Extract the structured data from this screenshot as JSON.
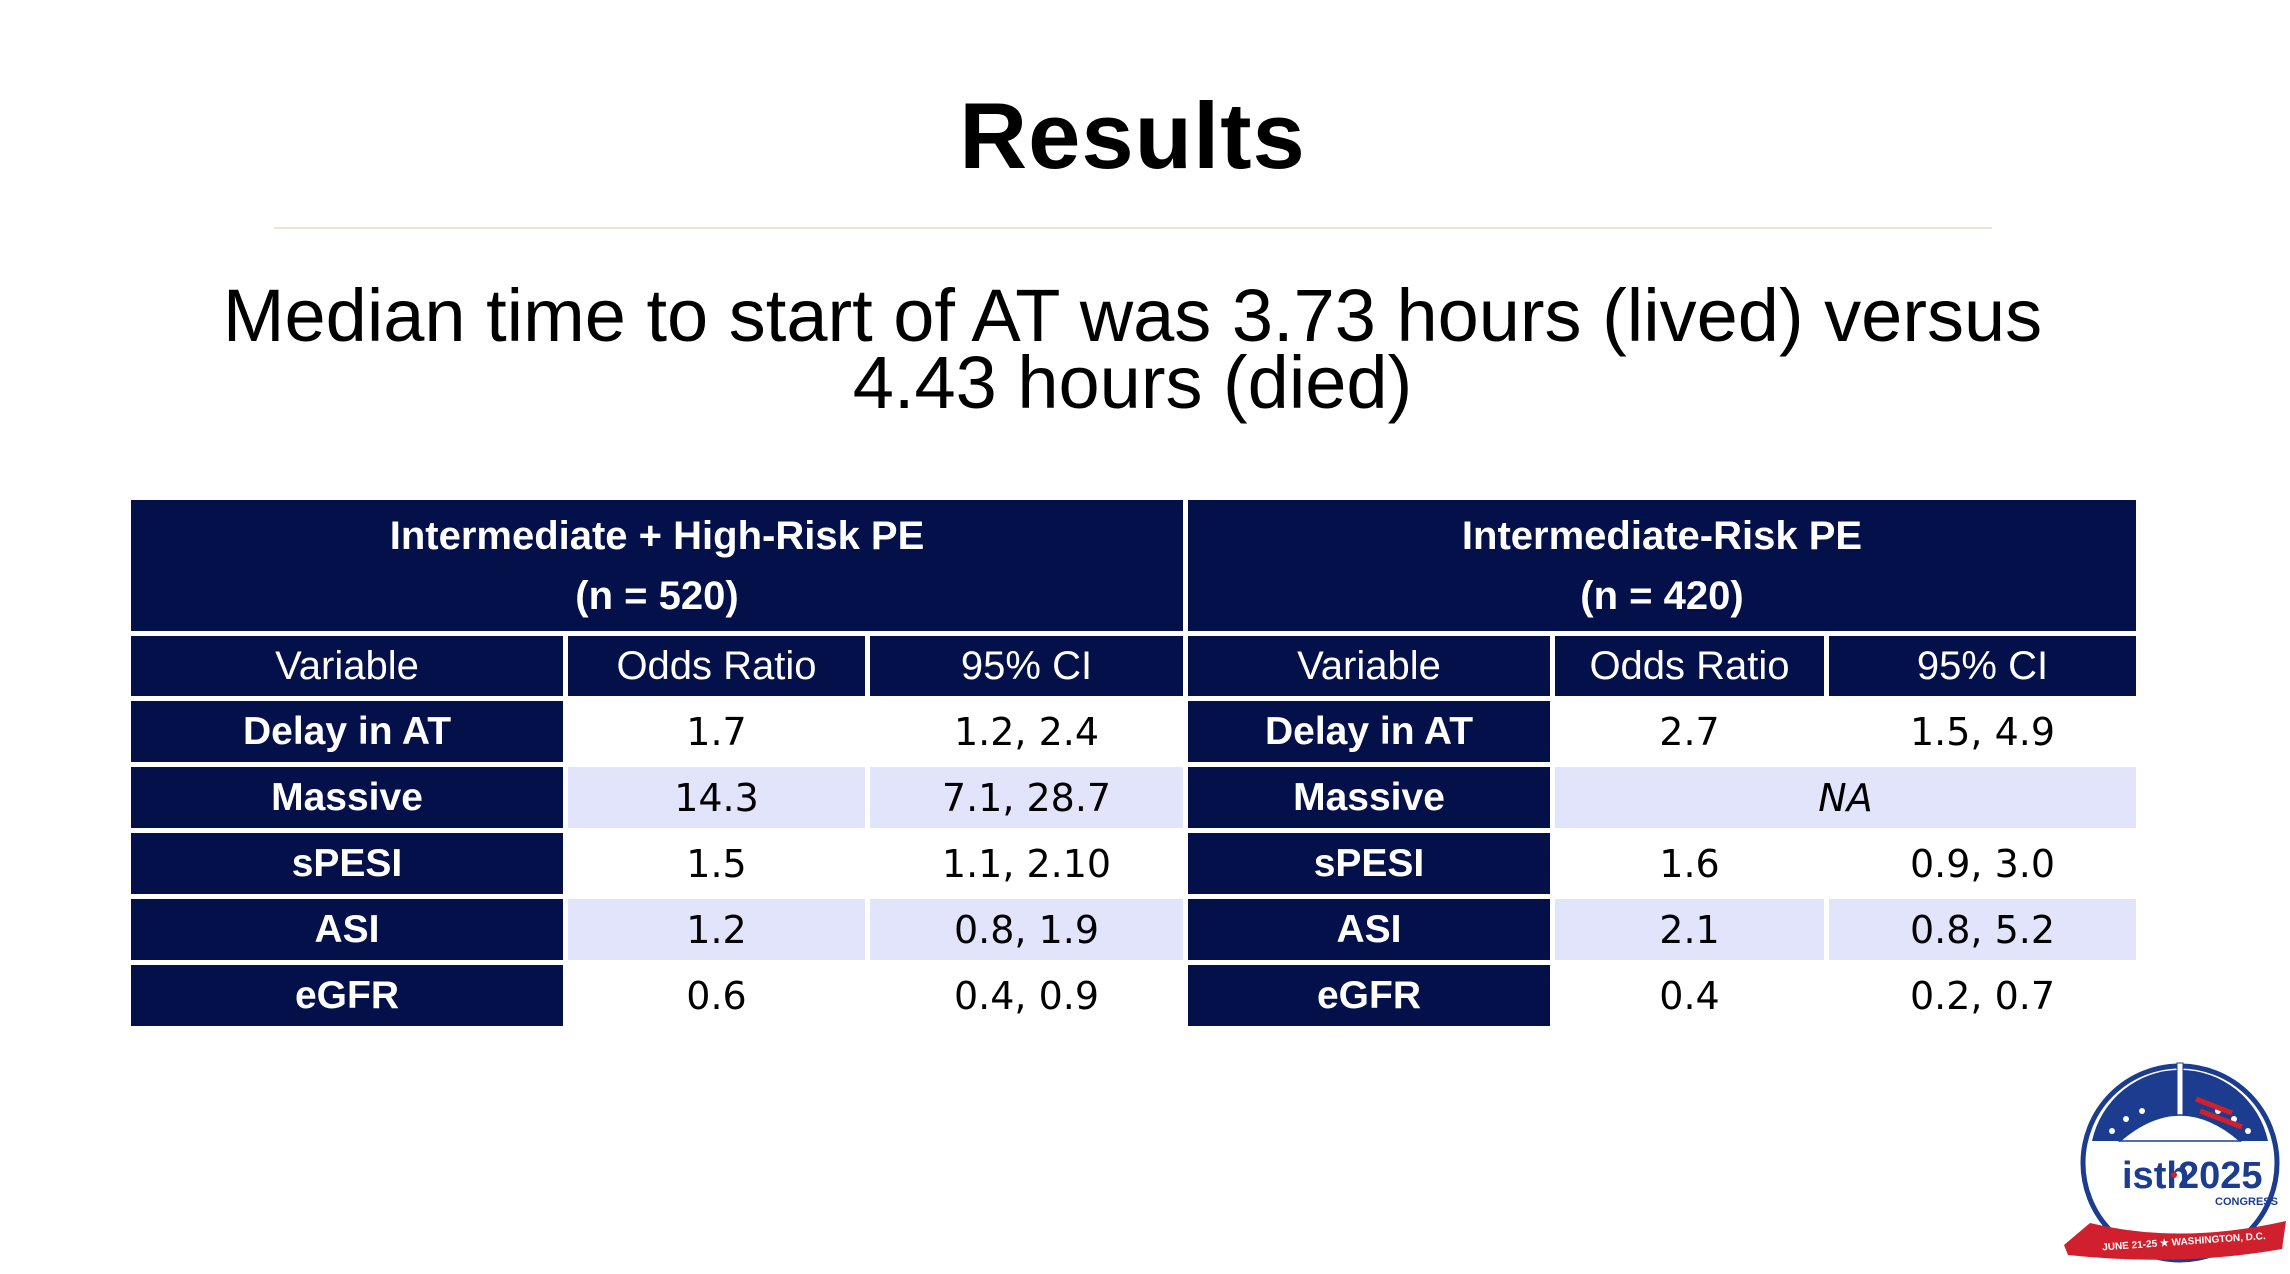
{
  "slide": {
    "title": "Results",
    "subtitle_line1": "Median time to start of AT was 3.73 hours (lived) versus",
    "subtitle_line2": "4.43 hours (died)"
  },
  "table": {
    "groups": [
      {
        "label_line1": "Intermediate + High-Risk PE",
        "label_line2": "(n = 520)"
      },
      {
        "label_line1": "Intermediate-Risk PE",
        "label_line2": "(n = 420)"
      }
    ],
    "columns": [
      "Variable",
      "Odds Ratio",
      "95% CI",
      "Variable",
      "Odds Ratio",
      "95% CI"
    ],
    "rows": [
      {
        "var_a": "Delay in AT",
        "or_a": "1.7",
        "ci_a": "1.2, 2.4",
        "var_b": "Delay in AT",
        "or_b": "2.7",
        "ci_b": "1.5, 4.9"
      },
      {
        "var_a": "Massive",
        "or_a": "14.3",
        "ci_a": "7.1, 28.7",
        "var_b": "Massive",
        "na_b": "NA"
      },
      {
        "var_a": "sPESI",
        "or_a": "1.5",
        "ci_a": "1.1, 2.10",
        "var_b": "sPESI",
        "or_b": "1.6",
        "ci_b": "0.9, 3.0"
      },
      {
        "var_a": "ASI",
        "or_a": "1.2",
        "ci_a": "0.8, 1.9",
        "var_b": "ASI",
        "or_b": "2.1",
        "ci_b": "0.8, 5.2"
      },
      {
        "var_a": "eGFR",
        "or_a": "0.6",
        "ci_a": "0.4, 0.9",
        "var_b": "eGFR",
        "or_b": "0.4",
        "ci_b": "0.2, 0.7"
      }
    ]
  },
  "logo": {
    "brand_isth": "isth",
    "brand_year": "2025",
    "brand_word": "CONGRESS",
    "ribbon_text": "JUNE 21-25 ★ WASHINGTON, D.C."
  },
  "colors": {
    "header_navy": "#03104a",
    "row_tint": "#e2e4fb",
    "logo_red": "#d0202e",
    "logo_blue": "#1c3d8f"
  }
}
